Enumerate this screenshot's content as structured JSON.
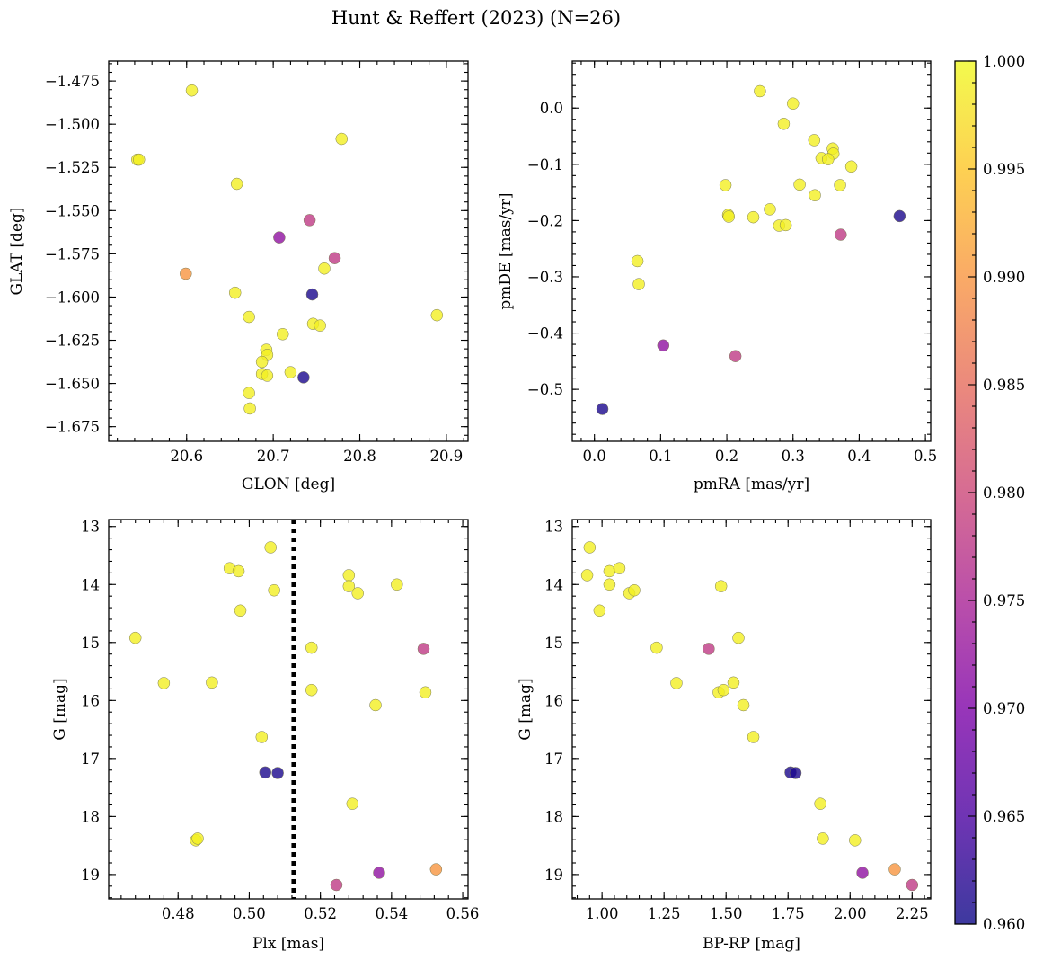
{
  "title": "Hunt & Reffert (2023) (N=26)",
  "colorbar": {
    "min": 0.96,
    "max": 1.0,
    "ticks": [
      0.96,
      0.965,
      0.97,
      0.975,
      0.98,
      0.985,
      0.99,
      0.995,
      1.0
    ],
    "tick_labels": [
      "0.960",
      "0.965",
      "0.970",
      "0.975",
      "0.980",
      "0.985",
      "0.990",
      "0.995",
      "1.000"
    ],
    "colormap": "plasma"
  },
  "chart_data": [
    {
      "type": "scatter",
      "id": "glon-glat",
      "xlabel": "GLON [deg]",
      "ylabel": "GLAT [deg]",
      "xlim": [
        20.51,
        20.925
      ],
      "ylim": [
        -1.6835,
        -1.4635
      ],
      "xticks": [
        20.6,
        20.7,
        20.8,
        20.9
      ],
      "xtick_labels": [
        "20.6",
        "20.7",
        "20.8",
        "20.9"
      ],
      "yticks": [
        -1.475,
        -1.5,
        -1.525,
        -1.55,
        -1.575,
        -1.6,
        -1.625,
        -1.65,
        -1.675
      ],
      "ytick_labels": [
        "−1.475",
        "−1.500",
        "−1.525",
        "−1.550",
        "−1.575",
        "−1.600",
        "−1.625",
        "−1.650",
        "−1.675"
      ],
      "points": [
        {
          "x": 20.606,
          "y": -1.4805,
          "p": 0.999
        },
        {
          "x": 20.779,
          "y": -1.5085,
          "p": 0.999
        },
        {
          "x": 20.543,
          "y": -1.5205,
          "p": 0.999
        },
        {
          "x": 20.545,
          "y": -1.5205,
          "p": 0.999
        },
        {
          "x": 20.658,
          "y": -1.5345,
          "p": 0.999
        },
        {
          "x": 20.742,
          "y": -1.5555,
          "p": 0.978
        },
        {
          "x": 20.707,
          "y": -1.5655,
          "p": 0.972
        },
        {
          "x": 20.771,
          "y": -1.5775,
          "p": 0.978
        },
        {
          "x": 20.599,
          "y": -1.5865,
          "p": 0.99
        },
        {
          "x": 20.759,
          "y": -1.5835,
          "p": 0.999
        },
        {
          "x": 20.656,
          "y": -1.5975,
          "p": 0.999
        },
        {
          "x": 20.745,
          "y": -1.5985,
          "p": 0.961
        },
        {
          "x": 20.889,
          "y": -1.6105,
          "p": 0.999
        },
        {
          "x": 20.672,
          "y": -1.6115,
          "p": 0.999
        },
        {
          "x": 20.746,
          "y": -1.6155,
          "p": 0.999
        },
        {
          "x": 20.754,
          "y": -1.6165,
          "p": 0.999
        },
        {
          "x": 20.711,
          "y": -1.6215,
          "p": 0.999
        },
        {
          "x": 20.692,
          "y": -1.6305,
          "p": 0.999
        },
        {
          "x": 20.693,
          "y": -1.6335,
          "p": 0.999
        },
        {
          "x": 20.687,
          "y": -1.6375,
          "p": 0.999
        },
        {
          "x": 20.72,
          "y": -1.6435,
          "p": 0.999
        },
        {
          "x": 20.687,
          "y": -1.6445,
          "p": 0.999
        },
        {
          "x": 20.693,
          "y": -1.6455,
          "p": 0.999
        },
        {
          "x": 20.735,
          "y": -1.6465,
          "p": 0.961
        },
        {
          "x": 20.672,
          "y": -1.6555,
          "p": 0.999
        },
        {
          "x": 20.673,
          "y": -1.6645,
          "p": 0.999
        }
      ]
    },
    {
      "type": "scatter",
      "id": "pmra-pmde",
      "xlabel": "pmRA [mas/yr]",
      "ylabel": "pmDE [mas/yr]",
      "xlim": [
        -0.0335,
        0.508
      ],
      "ylim": [
        -0.5925,
        0.0835
      ],
      "xticks": [
        0.0,
        0.1,
        0.2,
        0.3,
        0.4,
        0.5
      ],
      "xtick_labels": [
        "0.0",
        "0.1",
        "0.2",
        "0.3",
        "0.4",
        "0.5"
      ],
      "yticks": [
        0.0,
        -0.1,
        -0.2,
        -0.3,
        -0.4,
        -0.5
      ],
      "ytick_labels": [
        "0.0",
        "−0.1",
        "−0.2",
        "−0.3",
        "−0.4",
        "−0.5"
      ],
      "points": [
        {
          "x": 0.25,
          "y": 0.03,
          "p": 0.999
        },
        {
          "x": 0.3,
          "y": 0.008,
          "p": 0.999
        },
        {
          "x": 0.286,
          "y": -0.028,
          "p": 0.999
        },
        {
          "x": 0.332,
          "y": -0.057,
          "p": 0.999
        },
        {
          "x": 0.36,
          "y": -0.072,
          "p": 0.999
        },
        {
          "x": 0.361,
          "y": -0.081,
          "p": 0.999
        },
        {
          "x": 0.343,
          "y": -0.089,
          "p": 0.999
        },
        {
          "x": 0.353,
          "y": -0.091,
          "p": 0.999
        },
        {
          "x": 0.388,
          "y": -0.104,
          "p": 0.999
        },
        {
          "x": 0.198,
          "y": -0.137,
          "p": 0.999
        },
        {
          "x": 0.31,
          "y": -0.136,
          "p": 0.999
        },
        {
          "x": 0.371,
          "y": -0.137,
          "p": 0.999
        },
        {
          "x": 0.333,
          "y": -0.155,
          "p": 0.999
        },
        {
          "x": 0.265,
          "y": -0.18,
          "p": 0.999
        },
        {
          "x": 0.202,
          "y": -0.19,
          "p": 0.999
        },
        {
          "x": 0.203,
          "y": -0.193,
          "p": 0.999
        },
        {
          "x": 0.24,
          "y": -0.194,
          "p": 0.999
        },
        {
          "x": 0.461,
          "y": -0.192,
          "p": 0.961
        },
        {
          "x": 0.279,
          "y": -0.209,
          "p": 0.999
        },
        {
          "x": 0.289,
          "y": -0.208,
          "p": 0.999
        },
        {
          "x": 0.372,
          "y": -0.225,
          "p": 0.978
        },
        {
          "x": 0.065,
          "y": -0.272,
          "p": 0.999
        },
        {
          "x": 0.067,
          "y": -0.313,
          "p": 0.999
        },
        {
          "x": 0.104,
          "y": -0.422,
          "p": 0.972
        },
        {
          "x": 0.213,
          "y": -0.441,
          "p": 0.978
        },
        {
          "x": 0.012,
          "y": -0.535,
          "p": 0.961
        }
      ]
    },
    {
      "type": "scatter",
      "id": "plx-g",
      "xlabel": "Plx [mas]",
      "ylabel": "G [mag]",
      "xlim": [
        0.4605,
        0.5615
      ],
      "ylim": [
        19.42,
        12.88
      ],
      "y_inverted": true,
      "vline": {
        "x": 0.5125,
        "style": "dotted"
      },
      "xticks": [
        0.48,
        0.5,
        0.52,
        0.54,
        0.56
      ],
      "xtick_labels": [
        "0.48",
        "0.50",
        "0.52",
        "0.54",
        "0.56"
      ],
      "yticks": [
        13,
        14,
        15,
        16,
        17,
        18,
        19
      ],
      "ytick_labels": [
        "13",
        "14",
        "15",
        "16",
        "17",
        "18",
        "19"
      ],
      "points": [
        {
          "x": 0.506,
          "y": 13.36,
          "p": 0.999
        },
        {
          "x": 0.4945,
          "y": 13.72,
          "p": 0.999
        },
        {
          "x": 0.497,
          "y": 13.77,
          "p": 0.999
        },
        {
          "x": 0.528,
          "y": 13.84,
          "p": 0.999
        },
        {
          "x": 0.528,
          "y": 14.03,
          "p": 0.999
        },
        {
          "x": 0.5415,
          "y": 14.0,
          "p": 0.999
        },
        {
          "x": 0.507,
          "y": 14.1,
          "p": 0.999
        },
        {
          "x": 0.5305,
          "y": 14.15,
          "p": 0.999
        },
        {
          "x": 0.4975,
          "y": 14.45,
          "p": 0.999
        },
        {
          "x": 0.468,
          "y": 14.92,
          "p": 0.999
        },
        {
          "x": 0.5175,
          "y": 15.09,
          "p": 0.999
        },
        {
          "x": 0.549,
          "y": 15.11,
          "p": 0.978
        },
        {
          "x": 0.476,
          "y": 15.7,
          "p": 0.999
        },
        {
          "x": 0.4895,
          "y": 15.69,
          "p": 0.999
        },
        {
          "x": 0.5175,
          "y": 15.82,
          "p": 0.999
        },
        {
          "x": 0.5495,
          "y": 15.86,
          "p": 0.999
        },
        {
          "x": 0.5355,
          "y": 16.08,
          "p": 0.999
        },
        {
          "x": 0.5035,
          "y": 16.63,
          "p": 0.999
        },
        {
          "x": 0.5045,
          "y": 17.24,
          "p": 0.961
        },
        {
          "x": 0.508,
          "y": 17.25,
          "p": 0.961
        },
        {
          "x": 0.529,
          "y": 17.78,
          "p": 0.999
        },
        {
          "x": 0.485,
          "y": 18.41,
          "p": 0.999
        },
        {
          "x": 0.4855,
          "y": 18.38,
          "p": 0.999
        },
        {
          "x": 0.5365,
          "y": 18.97,
          "p": 0.972
        },
        {
          "x": 0.5525,
          "y": 18.91,
          "p": 0.99
        },
        {
          "x": 0.5245,
          "y": 19.18,
          "p": 0.978
        }
      ]
    },
    {
      "type": "scatter",
      "id": "bprp-g",
      "xlabel": "BP-RP [mag]",
      "ylabel": "G [mag]",
      "xlim": [
        0.88,
        2.325
      ],
      "ylim": [
        19.42,
        12.88
      ],
      "y_inverted": true,
      "xticks": [
        1.0,
        1.25,
        1.5,
        1.75,
        2.0,
        2.25
      ],
      "xtick_labels": [
        "1.00",
        "1.25",
        "1.50",
        "1.75",
        "2.00",
        "2.25"
      ],
      "yticks": [
        13,
        14,
        15,
        16,
        17,
        18,
        19
      ],
      "ytick_labels": [
        "13",
        "14",
        "15",
        "16",
        "17",
        "18",
        "19"
      ],
      "points": [
        {
          "x": 0.95,
          "y": 13.36,
          "p": 0.999
        },
        {
          "x": 0.94,
          "y": 13.84,
          "p": 0.999
        },
        {
          "x": 1.03,
          "y": 13.77,
          "p": 0.999
        },
        {
          "x": 1.07,
          "y": 13.72,
          "p": 0.999
        },
        {
          "x": 1.03,
          "y": 14.0,
          "p": 0.999
        },
        {
          "x": 1.48,
          "y": 14.03,
          "p": 0.999
        },
        {
          "x": 1.11,
          "y": 14.15,
          "p": 0.999
        },
        {
          "x": 1.13,
          "y": 14.1,
          "p": 0.999
        },
        {
          "x": 0.99,
          "y": 14.45,
          "p": 0.999
        },
        {
          "x": 1.22,
          "y": 15.09,
          "p": 0.999
        },
        {
          "x": 1.43,
          "y": 15.11,
          "p": 0.978
        },
        {
          "x": 1.55,
          "y": 14.92,
          "p": 0.999
        },
        {
          "x": 1.3,
          "y": 15.7,
          "p": 0.999
        },
        {
          "x": 1.53,
          "y": 15.69,
          "p": 0.999
        },
        {
          "x": 1.47,
          "y": 15.86,
          "p": 0.999
        },
        {
          "x": 1.49,
          "y": 15.82,
          "p": 0.999
        },
        {
          "x": 1.57,
          "y": 16.08,
          "p": 0.999
        },
        {
          "x": 1.61,
          "y": 16.63,
          "p": 0.999
        },
        {
          "x": 1.76,
          "y": 17.24,
          "p": 0.961
        },
        {
          "x": 1.78,
          "y": 17.25,
          "p": 0.961
        },
        {
          "x": 1.88,
          "y": 17.78,
          "p": 0.999
        },
        {
          "x": 1.89,
          "y": 18.38,
          "p": 0.999
        },
        {
          "x": 2.02,
          "y": 18.41,
          "p": 0.999
        },
        {
          "x": 2.05,
          "y": 18.97,
          "p": 0.972
        },
        {
          "x": 2.18,
          "y": 18.91,
          "p": 0.99
        },
        {
          "x": 2.25,
          "y": 19.18,
          "p": 0.978
        }
      ]
    }
  ]
}
